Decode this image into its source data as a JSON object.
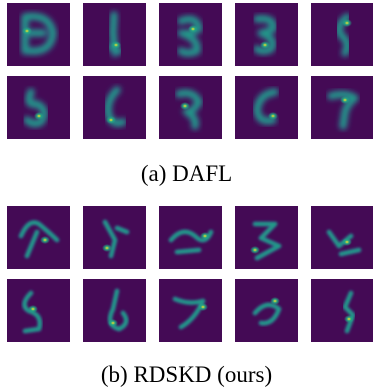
{
  "figure": {
    "panels": [
      {
        "id": "dafl",
        "caption": "(a) DAFL",
        "image_count": 10,
        "image_kind": "generated digit samples (viridis heatmap)"
      },
      {
        "id": "rdskd",
        "caption": "(b) RDSKD (ours)",
        "image_count": 10,
        "image_kind": "generated digit samples (viridis heatmap)"
      }
    ],
    "colors": {
      "background_dark": "#440a55",
      "mid": "#2a788e",
      "green": "#22a884",
      "bright": "#fde725"
    }
  }
}
